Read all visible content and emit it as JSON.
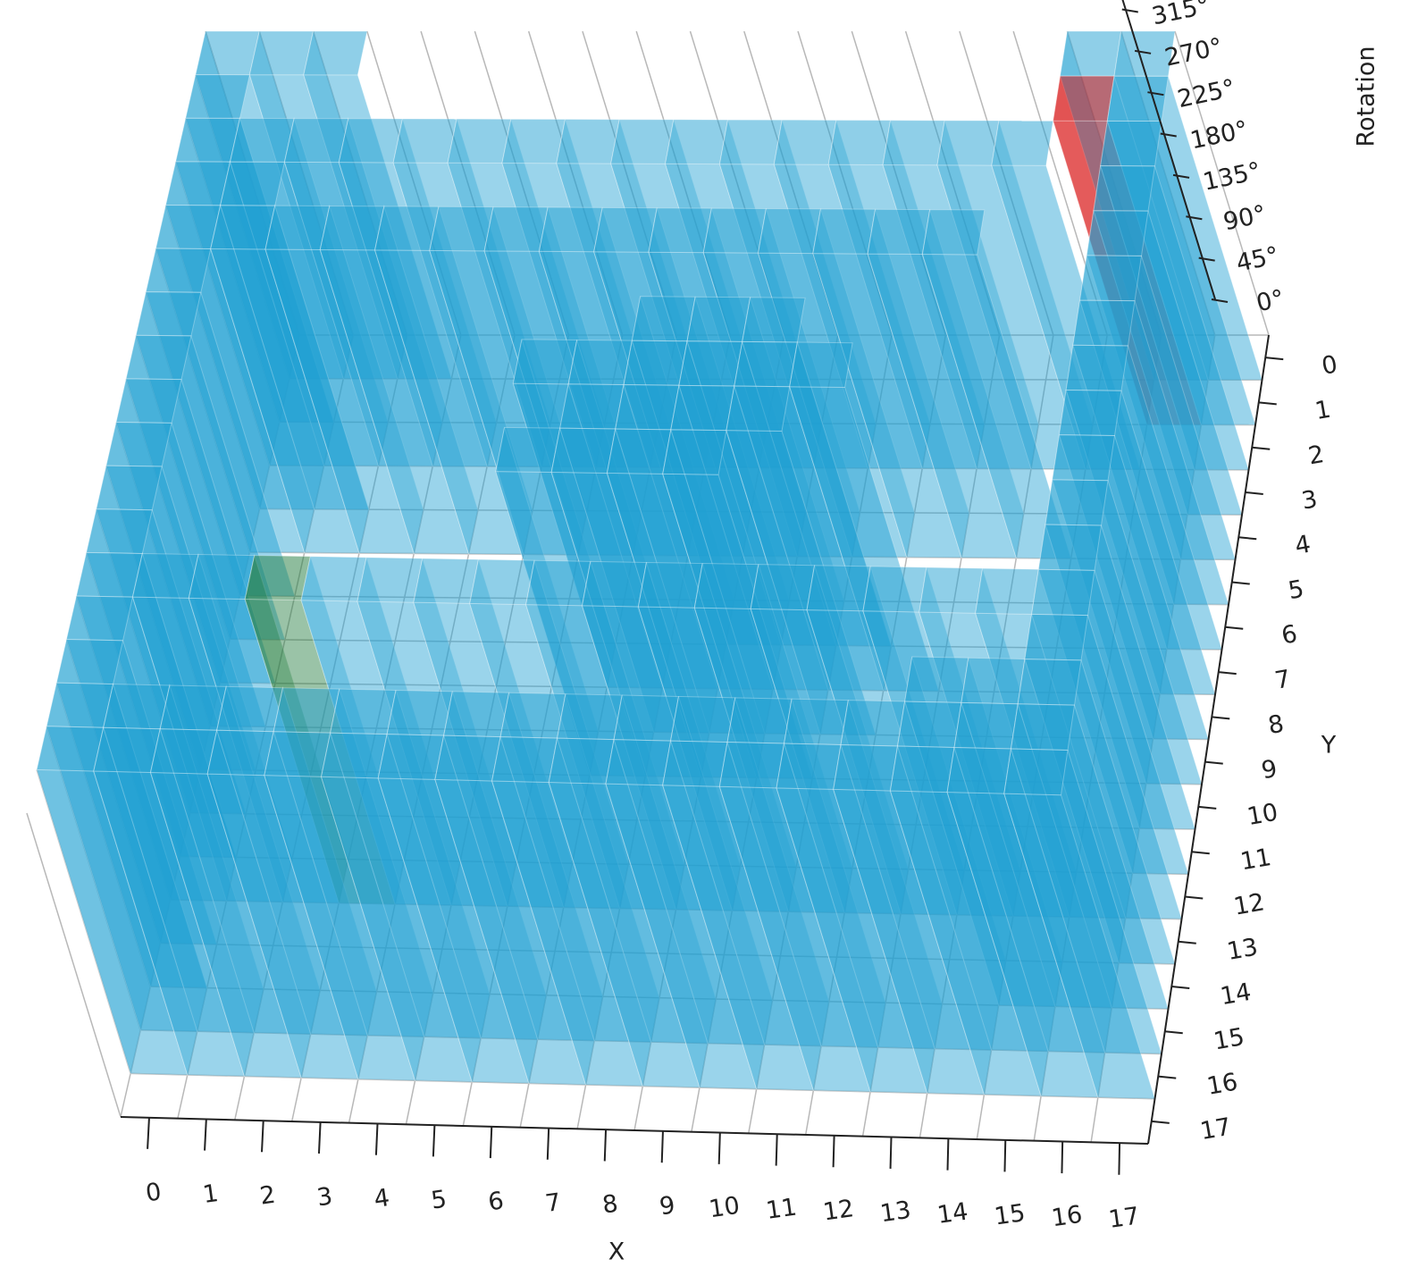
{
  "chart_data": {
    "type": "voxel",
    "xlabel": "X",
    "ylabel": "Y",
    "zlabel": "Rotation",
    "xlim": [
      -0.5,
      17.5
    ],
    "ylim": [
      -0.5,
      17.5
    ],
    "zlim": [
      0,
      330
    ],
    "xticks": [
      0,
      1,
      2,
      3,
      4,
      5,
      6,
      7,
      8,
      9,
      10,
      11,
      12,
      13,
      14,
      15,
      16,
      17
    ],
    "yticks": [
      0,
      1,
      2,
      3,
      4,
      5,
      6,
      7,
      8,
      9,
      10,
      11,
      12,
      13,
      14,
      15,
      16,
      17
    ],
    "zticks": [
      {
        "value": 0,
        "label": "0°"
      },
      {
        "value": 45,
        "label": "45°"
      },
      {
        "value": 90,
        "label": "90°"
      },
      {
        "value": 135,
        "label": "135°"
      },
      {
        "value": 180,
        "label": "180°"
      },
      {
        "value": 225,
        "label": "225°"
      },
      {
        "value": 270,
        "label": "270°"
      },
      {
        "value": 315,
        "label": "315°"
      }
    ],
    "obstacle_color": "#1fa0d2",
    "obstacles": [
      [
        0,
        0
      ],
      [
        1,
        0
      ],
      [
        2,
        0
      ],
      [
        16,
        0
      ],
      [
        17,
        0
      ],
      [
        0,
        1
      ],
      [
        17,
        1
      ],
      [
        0,
        2
      ],
      [
        1,
        2
      ],
      [
        2,
        2
      ],
      [
        3,
        2
      ],
      [
        4,
        2
      ],
      [
        5,
        2
      ],
      [
        6,
        2
      ],
      [
        7,
        2
      ],
      [
        8,
        2
      ],
      [
        9,
        2
      ],
      [
        10,
        2
      ],
      [
        11,
        2
      ],
      [
        12,
        2
      ],
      [
        13,
        2
      ],
      [
        14,
        2
      ],
      [
        15,
        2
      ],
      [
        17,
        2
      ],
      [
        0,
        3
      ],
      [
        1,
        3
      ],
      [
        17,
        3
      ],
      [
        0,
        4
      ],
      [
        1,
        4
      ],
      [
        2,
        4
      ],
      [
        3,
        4
      ],
      [
        4,
        4
      ],
      [
        5,
        4
      ],
      [
        6,
        4
      ],
      [
        7,
        4
      ],
      [
        8,
        4
      ],
      [
        9,
        4
      ],
      [
        10,
        4
      ],
      [
        11,
        4
      ],
      [
        12,
        4
      ],
      [
        13,
        4
      ],
      [
        14,
        4
      ],
      [
        17,
        4
      ],
      [
        0,
        5
      ],
      [
        17,
        5
      ],
      [
        0,
        6
      ],
      [
        9,
        6
      ],
      [
        10,
        6
      ],
      [
        11,
        6
      ],
      [
        17,
        6
      ],
      [
        0,
        7
      ],
      [
        7,
        7
      ],
      [
        8,
        7
      ],
      [
        9,
        7
      ],
      [
        10,
        7
      ],
      [
        11,
        7
      ],
      [
        12,
        7
      ],
      [
        17,
        7
      ],
      [
        0,
        8
      ],
      [
        8,
        8
      ],
      [
        9,
        8
      ],
      [
        10,
        8
      ],
      [
        11,
        8
      ],
      [
        17,
        8
      ],
      [
        0,
        9
      ],
      [
        7,
        9
      ],
      [
        8,
        9
      ],
      [
        9,
        9
      ],
      [
        10,
        9
      ],
      [
        17,
        9
      ],
      [
        0,
        10
      ],
      [
        17,
        10
      ],
      [
        0,
        11
      ],
      [
        17,
        11
      ],
      [
        0,
        12
      ],
      [
        1,
        12
      ],
      [
        2,
        12
      ],
      [
        4,
        12
      ],
      [
        5,
        12
      ],
      [
        6,
        12
      ],
      [
        7,
        12
      ],
      [
        8,
        12
      ],
      [
        9,
        12
      ],
      [
        10,
        12
      ],
      [
        11,
        12
      ],
      [
        12,
        12
      ],
      [
        13,
        12
      ],
      [
        14,
        12
      ],
      [
        15,
        12
      ],
      [
        16,
        12
      ],
      [
        17,
        12
      ],
      [
        0,
        13
      ],
      [
        17,
        13
      ],
      [
        0,
        14
      ],
      [
        15,
        14
      ],
      [
        16,
        14
      ],
      [
        17,
        14
      ],
      [
        0,
        15
      ],
      [
        1,
        15
      ],
      [
        2,
        15
      ],
      [
        3,
        15
      ],
      [
        4,
        15
      ],
      [
        5,
        15
      ],
      [
        6,
        15
      ],
      [
        7,
        15
      ],
      [
        8,
        15
      ],
      [
        9,
        15
      ],
      [
        10,
        15
      ],
      [
        11,
        15
      ],
      [
        12,
        15
      ],
      [
        13,
        15
      ],
      [
        14,
        15
      ],
      [
        15,
        15
      ],
      [
        16,
        15
      ],
      [
        17,
        15
      ],
      [
        0,
        16
      ],
      [
        1,
        16
      ],
      [
        2,
        16
      ],
      [
        3,
        16
      ],
      [
        4,
        16
      ],
      [
        5,
        16
      ],
      [
        6,
        16
      ],
      [
        7,
        16
      ],
      [
        8,
        16
      ],
      [
        9,
        16
      ],
      [
        10,
        16
      ],
      [
        11,
        16
      ],
      [
        12,
        16
      ],
      [
        13,
        16
      ],
      [
        14,
        16
      ],
      [
        15,
        16
      ],
      [
        16,
        16
      ],
      [
        17,
        16
      ]
    ],
    "start": [
      3,
      12
    ],
    "start_color": "#1e7a3c",
    "goal": [
      16,
      1
    ],
    "goal_color": "#d40000"
  }
}
